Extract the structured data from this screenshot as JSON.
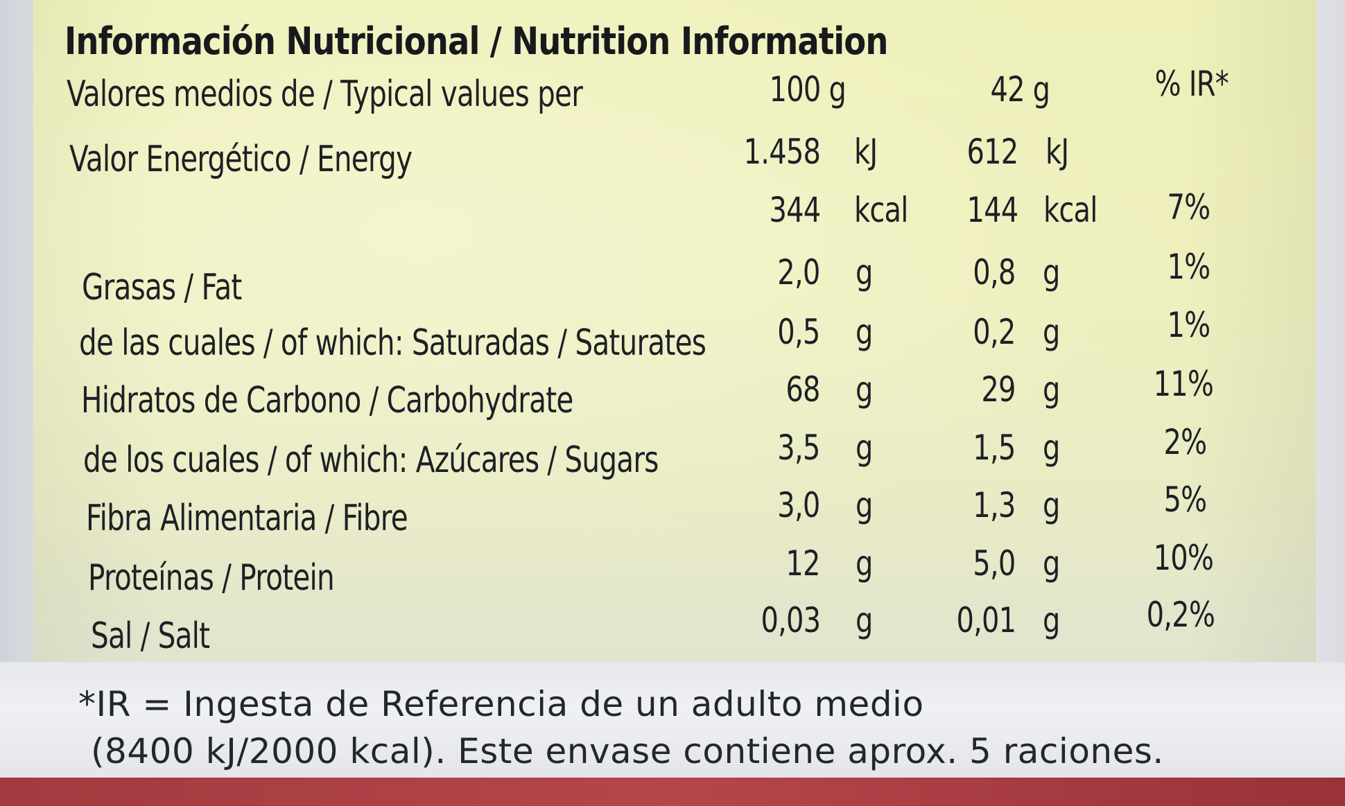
{
  "label": {
    "title": "Información Nutricional / Nutrition Information",
    "header": {
      "row_label": "Valores medios de / Typical values per",
      "col_100g": "100 g",
      "col_portion": "42 g",
      "col_ir": "% IR*"
    },
    "energy": {
      "label": "Valor Energético  / Energy",
      "kj_100g": "1.458",
      "kj_unit": "kJ",
      "kj_portion": "612",
      "kcal_100g": "344",
      "kcal_unit": "kcal",
      "kcal_portion": "144",
      "ir": "7%"
    },
    "rows": [
      {
        "label": "Grasas / Fat",
        "v100": "2,0",
        "u100": "g",
        "vportion": "0,8",
        "uportion": "g",
        "ir": "1%"
      },
      {
        "label": "de las cuales / of which: Saturadas / Saturates",
        "v100": "0,5",
        "u100": "g",
        "vportion": "0,2",
        "uportion": "g",
        "ir": "1%"
      },
      {
        "label": "Hidratos de Carbono / Carbohydrate",
        "v100": "68",
        "u100": "g",
        "vportion": "29",
        "uportion": "g",
        "ir": "11%"
      },
      {
        "label": "de los cuales / of which: Azúcares / Sugars",
        "v100": "3,5",
        "u100": "g",
        "vportion": "1,5",
        "uportion": "g",
        "ir": "2%"
      },
      {
        "label": "Fibra Alimentaria / Fibre",
        "v100": "3,0",
        "u100": "g",
        "vportion": "1,3",
        "uportion": "g",
        "ir": "5%"
      },
      {
        "label": "Proteínas / Protein",
        "v100": "12",
        "u100": "g",
        "vportion": "5,0",
        "uportion": "g",
        "ir": "10%"
      },
      {
        "label": "Sal / Salt",
        "v100": "0,03",
        "u100": "g",
        "vportion": "0,01",
        "uportion": "g",
        "ir": "0,2%"
      }
    ],
    "footnote": {
      "line1": "*IR = Ingesta de Referencia de un adulto medio",
      "line2": "(8400 kJ/2000 kcal). Este envase contiene aprox. 5 raciones."
    }
  },
  "colors": {
    "panel": "#eeefbe",
    "text": "#1d2024",
    "package_red": "#b5464b"
  }
}
